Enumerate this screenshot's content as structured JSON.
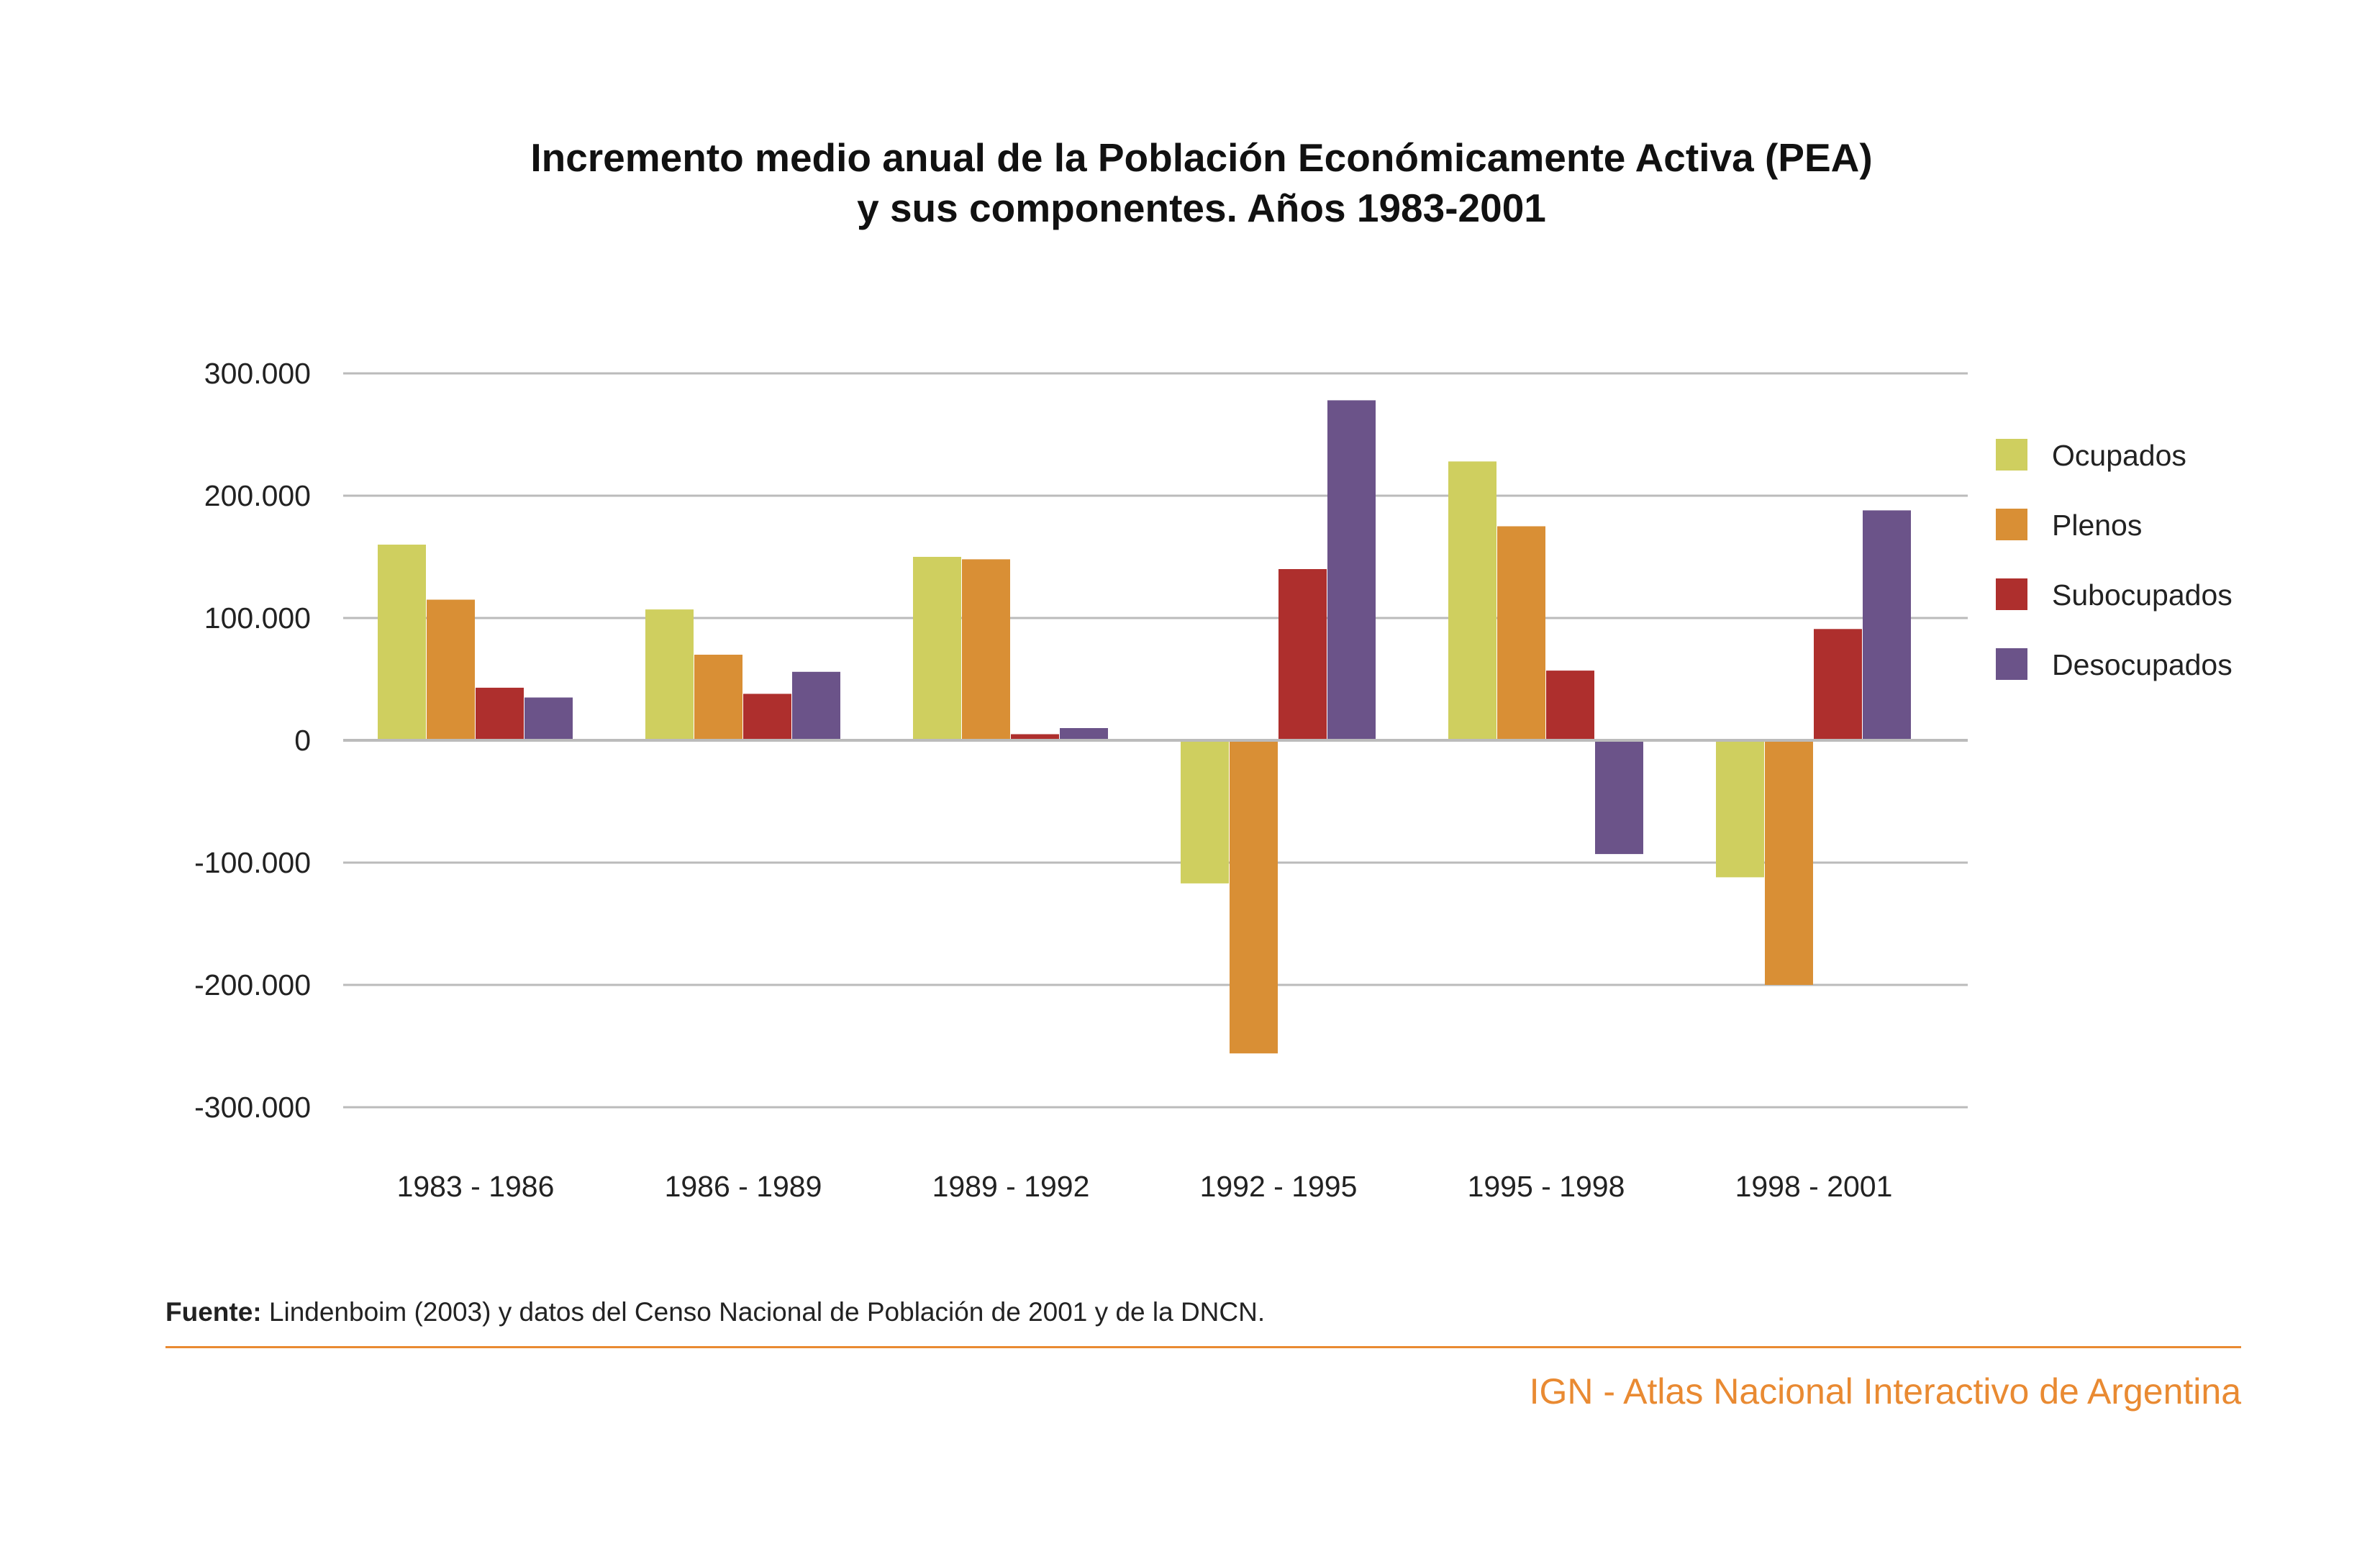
{
  "colors": {
    "ocupados": "#cfcf5f",
    "plenos": "#d98f35",
    "subocupados": "#ae2f2d",
    "desocupados": "#6b5389",
    "brand": "#e98a32",
    "grid": "#bbbbbb"
  },
  "chart_data": {
    "type": "bar",
    "title": "Incremento medio anual de la Población Económicamente Activa (PEA)",
    "subtitle": "y sus componentes. Años 1983-2001",
    "categories": [
      "1983 - 1986",
      "1986 - 1989",
      "1989 - 1992",
      "1992 - 1995",
      "1995 - 1998",
      "1998 - 2001"
    ],
    "series": [
      {
        "name": "Ocupados",
        "values": [
          160000,
          107000,
          150000,
          -117000,
          228000,
          -112000
        ]
      },
      {
        "name": "Plenos",
        "values": [
          115000,
          70000,
          148000,
          -256000,
          175000,
          -200000
        ]
      },
      {
        "name": "Subocupados",
        "values": [
          43000,
          38000,
          5000,
          140000,
          57000,
          91000
        ]
      },
      {
        "name": "Desocupados",
        "values": [
          35000,
          56000,
          10000,
          278000,
          -93000,
          188000
        ]
      }
    ],
    "ylim": [
      -300000,
      300000
    ],
    "yticks": [
      300000,
      200000,
      100000,
      0,
      -100000,
      -200000,
      -300000
    ],
    "ytick_labels": [
      "300.000",
      "200.000",
      "100.000",
      "0",
      "-100.000",
      "-200.000",
      "-300.000"
    ],
    "grid": true,
    "legend": "right"
  },
  "source": {
    "label": "Fuente:",
    "text": "Lindenboim (2003) y datos del Censo Nacional de Población de 2001 y de la DNCN."
  },
  "footer": {
    "brand": "IGN - Atlas Nacional Interactivo de Argentina"
  }
}
